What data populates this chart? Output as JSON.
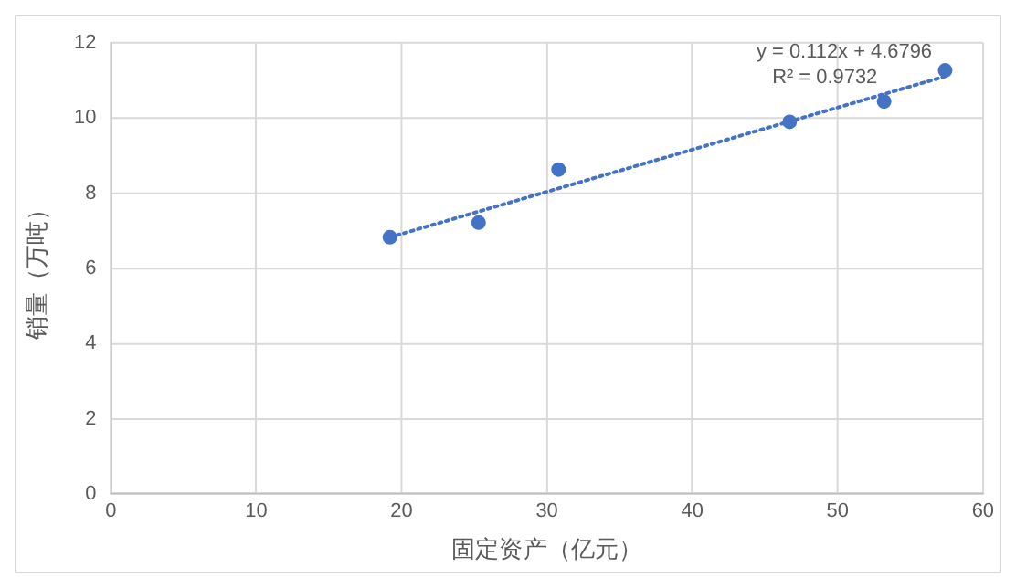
{
  "chart_data": {
    "type": "scatter",
    "xlabel": "固定资产（亿元）",
    "ylabel": "销量（万吨）",
    "series": [
      {
        "color": "#4472c4",
        "x": [
          19.2,
          25.3,
          30.8,
          46.7,
          53.2,
          57.4
        ],
        "values": [
          6.83,
          7.22,
          8.63,
          9.9,
          10.44,
          11.27
        ],
        "marker": "circle"
      },
      {
        "type": "line",
        "color": "#4472c4",
        "x": [
          19.2,
          57.4
        ],
        "values": [
          6.83,
          11.11
        ],
        "line_style": "dotted",
        "marker": "none"
      }
    ],
    "annotations": [
      "y = 0.112x + 4.6796",
      "R² = 0.9732"
    ],
    "xlim": [
      0,
      60
    ],
    "xticks": [
      0,
      10,
      20,
      30,
      40,
      50,
      60
    ],
    "ylim": [
      0,
      12
    ],
    "yticks": [
      0,
      2,
      4,
      6,
      8,
      10,
      12
    ],
    "grid": true,
    "legend": false
  }
}
